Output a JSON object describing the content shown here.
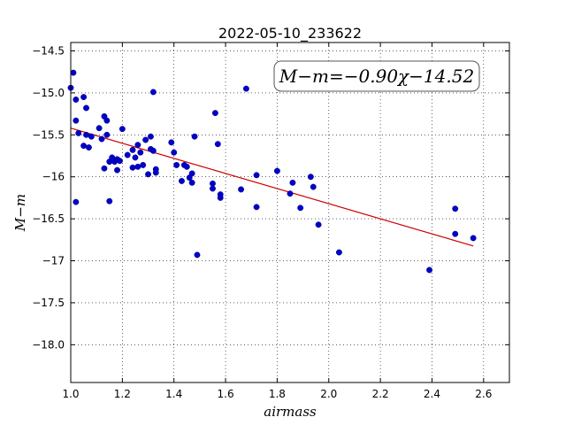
{
  "chart_data": {
    "type": "scatter",
    "title": "2022-05-10_233622",
    "xlabel": "airmass",
    "ylabel": "M−m",
    "xlim": [
      1.0,
      2.7
    ],
    "ylim": [
      -18.45,
      -14.4
    ],
    "y_inverted": true,
    "grid": true,
    "grid_style": "dotted",
    "xticks": [
      "1.0",
      "1.2",
      "1.4",
      "1.6",
      "1.8",
      "2.0",
      "2.2",
      "2.4",
      "2.6"
    ],
    "yticks": [
      "−14.5",
      "−15.0",
      "−15.5",
      "−16",
      "−16.5",
      "−17",
      "−17.5",
      "−18.0"
    ],
    "annotation": "M−m=−0.90χ−14.52",
    "fit": {
      "slope": -0.9,
      "intercept": -14.52,
      "x_range": [
        1.0,
        2.56
      ],
      "color": "#cc0000"
    },
    "point_color": "#0000cc",
    "points": [
      [
        1.0,
        -14.94
      ],
      [
        1.01,
        -14.76
      ],
      [
        1.02,
        -15.08
      ],
      [
        1.02,
        -15.33
      ],
      [
        1.02,
        -16.3
      ],
      [
        1.03,
        -15.48
      ],
      [
        1.05,
        -15.05
      ],
      [
        1.05,
        -15.63
      ],
      [
        1.06,
        -15.18
      ],
      [
        1.06,
        -15.5
      ],
      [
        1.07,
        -15.65
      ],
      [
        1.08,
        -15.52
      ],
      [
        1.11,
        -15.42
      ],
      [
        1.12,
        -15.55
      ],
      [
        1.13,
        -15.28
      ],
      [
        1.13,
        -15.9
      ],
      [
        1.14,
        -15.33
      ],
      [
        1.14,
        -15.5
      ],
      [
        1.15,
        -15.82
      ],
      [
        1.15,
        -16.29
      ],
      [
        1.16,
        -15.77
      ],
      [
        1.17,
        -15.82
      ],
      [
        1.18,
        -15.92
      ],
      [
        1.18,
        -15.79
      ],
      [
        1.19,
        -15.81
      ],
      [
        1.2,
        -15.43
      ],
      [
        1.22,
        -15.74
      ],
      [
        1.24,
        -15.89
      ],
      [
        1.24,
        -15.68
      ],
      [
        1.25,
        -15.77
      ],
      [
        1.26,
        -15.62
      ],
      [
        1.26,
        -15.88
      ],
      [
        1.27,
        -15.71
      ],
      [
        1.28,
        -15.86
      ],
      [
        1.29,
        -15.56
      ],
      [
        1.3,
        -15.97
      ],
      [
        1.31,
        -15.52
      ],
      [
        1.31,
        -15.67
      ],
      [
        1.32,
        -15.69
      ],
      [
        1.32,
        -14.99
      ],
      [
        1.33,
        -15.91
      ],
      [
        1.33,
        -15.95
      ],
      [
        1.39,
        -15.59
      ],
      [
        1.4,
        -15.71
      ],
      [
        1.41,
        -15.86
      ],
      [
        1.43,
        -16.05
      ],
      [
        1.44,
        -15.86
      ],
      [
        1.45,
        -15.88
      ],
      [
        1.46,
        -16.01
      ],
      [
        1.47,
        -15.96
      ],
      [
        1.47,
        -16.07
      ],
      [
        1.48,
        -15.52
      ],
      [
        1.49,
        -16.93
      ],
      [
        1.55,
        -16.14
      ],
      [
        1.55,
        -16.08
      ],
      [
        1.56,
        -15.24
      ],
      [
        1.57,
        -15.61
      ],
      [
        1.58,
        -16.21
      ],
      [
        1.58,
        -16.25
      ],
      [
        1.66,
        -16.15
      ],
      [
        1.68,
        -14.95
      ],
      [
        1.72,
        -15.98
      ],
      [
        1.72,
        -16.36
      ],
      [
        1.8,
        -15.93
      ],
      [
        1.85,
        -16.2
      ],
      [
        1.86,
        -16.07
      ],
      [
        1.89,
        -16.37
      ],
      [
        1.93,
        -16.0
      ],
      [
        1.94,
        -16.12
      ],
      [
        1.96,
        -16.57
      ],
      [
        2.04,
        -16.9
      ],
      [
        2.39,
        -17.11
      ],
      [
        2.49,
        -16.38
      ],
      [
        2.49,
        -16.68
      ],
      [
        2.56,
        -16.73
      ]
    ]
  }
}
